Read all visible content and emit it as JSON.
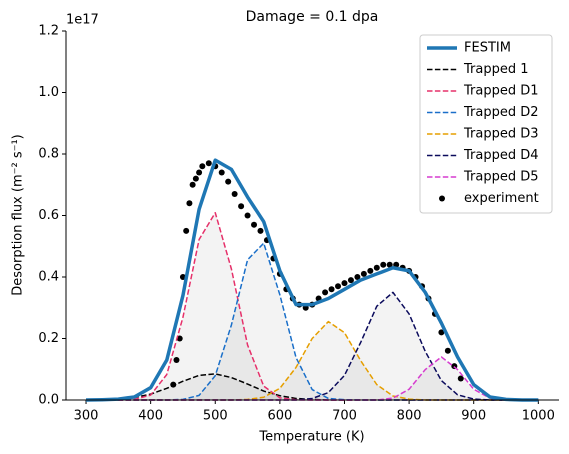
{
  "chart_data": {
    "type": "line",
    "title": "Damage = 0.1 dpa",
    "x_label": "Temperature (K)",
    "y_label": "Desorption flux (m⁻² s⁻¹)",
    "y_offset_label": "1e17",
    "xlim": [
      269,
      1032
    ],
    "ylim": [
      0,
      1.2
    ],
    "xticks": [
      300,
      400,
      500,
      600,
      700,
      800,
      900,
      1000
    ],
    "yticks": [
      {
        "value": 0,
        "label": "0.0"
      },
      {
        "value": 0.2,
        "label": "0.2"
      },
      {
        "value": 0.4,
        "label": "0.4"
      },
      {
        "value": 0.6,
        "label": "0.6"
      },
      {
        "value": 0.8,
        "label": "0.8"
      },
      {
        "value": 1.0,
        "label": "1.0"
      },
      {
        "value": 1.2,
        "label": "1.2"
      }
    ],
    "legend": "upper right",
    "x": [
      300,
      325,
      350,
      375,
      400,
      425,
      450,
      475,
      500,
      525,
      550,
      575,
      600,
      625,
      650,
      675,
      700,
      725,
      750,
      775,
      800,
      825,
      850,
      875,
      900,
      925,
      950,
      975,
      1000
    ],
    "series": [
      {
        "name": "FESTIM",
        "color": "#1f77b4",
        "linestyle": "solid",
        "fill": false,
        "values": [
          0,
          0.001,
          0.003,
          0.01,
          0.04,
          0.13,
          0.34,
          0.62,
          0.78,
          0.75,
          0.66,
          0.58,
          0.42,
          0.31,
          0.31,
          0.33,
          0.36,
          0.39,
          0.41,
          0.43,
          0.42,
          0.35,
          0.25,
          0.14,
          0.05,
          0.01,
          0.002,
          0,
          0
        ]
      },
      {
        "name": "Trapped 1",
        "color": "#000000",
        "linestyle": "dashed",
        "fill": true,
        "values": [
          0,
          0.001,
          0.003,
          0.008,
          0.019,
          0.038,
          0.061,
          0.08,
          0.085,
          0.073,
          0.052,
          0.029,
          0.014,
          0.005,
          0.002,
          0,
          0,
          0,
          0,
          0,
          0,
          0,
          0,
          0,
          0,
          0,
          0,
          0,
          0
        ]
      },
      {
        "name": "Trapped D1",
        "color": "#e6306a",
        "linestyle": "dashed",
        "fill": true,
        "values": [
          0,
          0,
          0,
          0.002,
          0.016,
          0.083,
          0.269,
          0.522,
          0.609,
          0.426,
          0.179,
          0.045,
          0.007,
          0.001,
          0,
          0,
          0,
          0,
          0,
          0,
          0,
          0,
          0,
          0,
          0,
          0,
          0,
          0,
          0
        ]
      },
      {
        "name": "Trapped D2",
        "color": "#1a6fc9",
        "linestyle": "dashed",
        "fill": true,
        "values": [
          0,
          0,
          0,
          0,
          0,
          0,
          0.002,
          0.015,
          0.079,
          0.244,
          0.456,
          0.51,
          0.342,
          0.138,
          0.034,
          0.005,
          0.001,
          0,
          0,
          0,
          0,
          0,
          0,
          0,
          0,
          0,
          0,
          0,
          0
        ]
      },
      {
        "name": "Trapped D3",
        "color": "#e69f00",
        "linestyle": "dashed",
        "fill": true,
        "values": [
          0,
          0,
          0,
          0,
          0,
          0,
          0,
          0,
          0,
          0,
          0.002,
          0.009,
          0.038,
          0.106,
          0.2,
          0.255,
          0.219,
          0.128,
          0.05,
          0.013,
          0.003,
          0,
          0,
          0,
          0,
          0,
          0,
          0,
          0
        ]
      },
      {
        "name": "Trapped D4",
        "color": "#0b0b5c",
        "linestyle": "dashed",
        "fill": true,
        "values": [
          0,
          0,
          0,
          0,
          0,
          0,
          0,
          0,
          0,
          0,
          0,
          0,
          0,
          0,
          0.005,
          0.024,
          0.08,
          0.187,
          0.305,
          0.35,
          0.28,
          0.158,
          0.063,
          0.017,
          0.003,
          0,
          0,
          0,
          0
        ]
      },
      {
        "name": "Trapped D5",
        "color": "#d63ccf",
        "linestyle": "dashed",
        "fill": true,
        "values": [
          0,
          0,
          0,
          0,
          0,
          0,
          0,
          0,
          0,
          0,
          0,
          0,
          0,
          0,
          0,
          0,
          0,
          0,
          0,
          0.006,
          0.035,
          0.099,
          0.14,
          0.099,
          0.035,
          0.006,
          0.001,
          0,
          0
        ]
      }
    ],
    "scatter": {
      "name": "experiment",
      "color": "#000000",
      "x": [
        435,
        440,
        445,
        450,
        455,
        460,
        465,
        470,
        475,
        480,
        490,
        500,
        510,
        520,
        530,
        540,
        550,
        560,
        570,
        580,
        590,
        600,
        610,
        620,
        630,
        640,
        650,
        660,
        670,
        680,
        690,
        700,
        710,
        720,
        730,
        740,
        750,
        760,
        770,
        780,
        790,
        800,
        810,
        820,
        830,
        840,
        850,
        860,
        870,
        880
      ],
      "values": [
        0.05,
        0.13,
        0.2,
        0.4,
        0.55,
        0.64,
        0.7,
        0.72,
        0.74,
        0.76,
        0.77,
        0.76,
        0.74,
        0.71,
        0.67,
        0.63,
        0.6,
        0.57,
        0.55,
        0.52,
        0.46,
        0.41,
        0.36,
        0.33,
        0.31,
        0.3,
        0.31,
        0.33,
        0.35,
        0.36,
        0.37,
        0.38,
        0.39,
        0.4,
        0.41,
        0.42,
        0.43,
        0.44,
        0.44,
        0.44,
        0.43,
        0.42,
        0.4,
        0.37,
        0.33,
        0.28,
        0.22,
        0.16,
        0.11,
        0.07
      ]
    }
  }
}
